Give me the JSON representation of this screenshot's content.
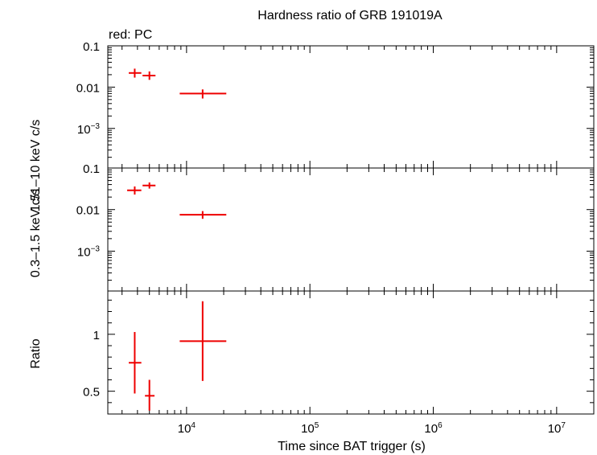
{
  "chart_data": {
    "type": "scatter",
    "title": "Hardness ratio of GRB 191019A",
    "subtitle": "red: PC",
    "xlabel": "Time since BAT trigger (s)",
    "xscale": "log",
    "xlim": [
      2300,
      20000000
    ],
    "x_ticks": [
      {
        "value": 10000,
        "base": "10",
        "exp": "4"
      },
      {
        "value": 100000,
        "base": "10",
        "exp": "5"
      },
      {
        "value": 1000000,
        "base": "10",
        "exp": "6"
      },
      {
        "value": 10000000,
        "base": "10",
        "exp": "7"
      }
    ],
    "series_color": "#ee0000",
    "panels": [
      {
        "ylabel": "1.51–10 keV c/s",
        "yscale": "log",
        "ylim": [
          0.00011,
          0.1
        ],
        "y_ticks": [
          {
            "value": 0.1,
            "label": "0.1",
            "base": "",
            "exp": ""
          },
          {
            "value": 0.01,
            "label": "0.01",
            "base": "",
            "exp": ""
          },
          {
            "value": 0.001,
            "label": "",
            "base": "10",
            "exp": "−3"
          }
        ],
        "points": [
          {
            "x": 3800,
            "xlo": 3400,
            "xhi": 4300,
            "y": 0.022,
            "ylo": 0.017,
            "yhi": 0.028
          },
          {
            "x": 5000,
            "xlo": 4400,
            "xhi": 5600,
            "y": 0.019,
            "ylo": 0.015,
            "yhi": 0.024
          },
          {
            "x": 13500,
            "xlo": 8800,
            "xhi": 21000,
            "y": 0.007,
            "ylo": 0.0053,
            "yhi": 0.0088
          }
        ]
      },
      {
        "ylabel": "0.3–1.5 keV c/s",
        "yscale": "log",
        "ylim": [
          0.00011,
          0.1
        ],
        "y_ticks": [
          {
            "value": 0.1,
            "label": "0.1",
            "base": "",
            "exp": ""
          },
          {
            "value": 0.01,
            "label": "0.01",
            "base": "",
            "exp": ""
          },
          {
            "value": 0.001,
            "label": "",
            "base": "10",
            "exp": "−3"
          }
        ],
        "points": [
          {
            "x": 3800,
            "xlo": 3300,
            "xhi": 4300,
            "y": 0.029,
            "ylo": 0.023,
            "yhi": 0.036
          },
          {
            "x": 5000,
            "xlo": 4400,
            "xhi": 5600,
            "y": 0.038,
            "ylo": 0.032,
            "yhi": 0.045
          },
          {
            "x": 13500,
            "xlo": 8800,
            "xhi": 21000,
            "y": 0.0075,
            "ylo": 0.006,
            "yhi": 0.0092
          }
        ]
      },
      {
        "ylabel": "Ratio",
        "yscale": "linear",
        "ylim": [
          0.3,
          1.38
        ],
        "y_ticks": [
          {
            "value": 1,
            "label": "1",
            "base": "",
            "exp": ""
          },
          {
            "value": 0.5,
            "label": "0.5",
            "base": "",
            "exp": ""
          }
        ],
        "points": [
          {
            "x": 3800,
            "xlo": 3400,
            "xhi": 4300,
            "y": 0.75,
            "ylo": 0.48,
            "yhi": 1.02
          },
          {
            "x": 5000,
            "xlo": 4600,
            "xhi": 5500,
            "y": 0.46,
            "ylo": 0.33,
            "yhi": 0.6
          },
          {
            "x": 13500,
            "xlo": 8800,
            "xhi": 21000,
            "y": 0.94,
            "ylo": 0.59,
            "yhi": 1.29
          }
        ]
      }
    ]
  }
}
